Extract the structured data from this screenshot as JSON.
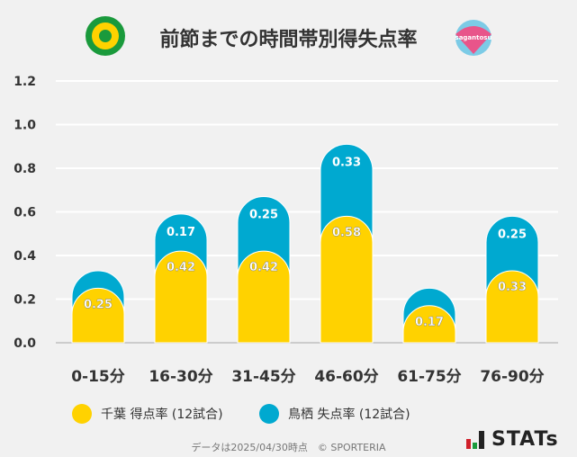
{
  "title": "前節までの時間帯別得失点率",
  "logos": {
    "left": "ジェフユナイテッド千葉 crest",
    "right": "sagantosu"
  },
  "footer": "データは2025/04/30時点　© SPORTERIA",
  "brand": "STATs",
  "chart_data": {
    "type": "bar",
    "stacked": true,
    "categories": [
      "0-15分",
      "16-30分",
      "31-45分",
      "46-60分",
      "61-75分",
      "76-90分"
    ],
    "series": [
      {
        "name": "千葉 得点率 (12試合)",
        "color": "#ffd200",
        "values": [
          0.25,
          0.42,
          0.42,
          0.58,
          0.17,
          0.33
        ],
        "labels": [
          "0.25",
          "0.42",
          "0.42",
          "0.58",
          "0.17",
          "0.33"
        ]
      },
      {
        "name": "鳥栖 失点率 (12試合)",
        "color": "#00a9d0",
        "values": [
          0.08,
          0.17,
          0.25,
          0.33,
          0.08,
          0.25
        ],
        "labels": [
          "",
          "0.17",
          "0.25",
          "0.33",
          "",
          "0.25"
        ]
      }
    ],
    "ylim": [
      0,
      1.2
    ],
    "yticks": [
      "0.0",
      "0.2",
      "0.4",
      "0.6",
      "0.8",
      "1.0",
      "1.2"
    ],
    "grid": true,
    "legend": "bottom"
  }
}
